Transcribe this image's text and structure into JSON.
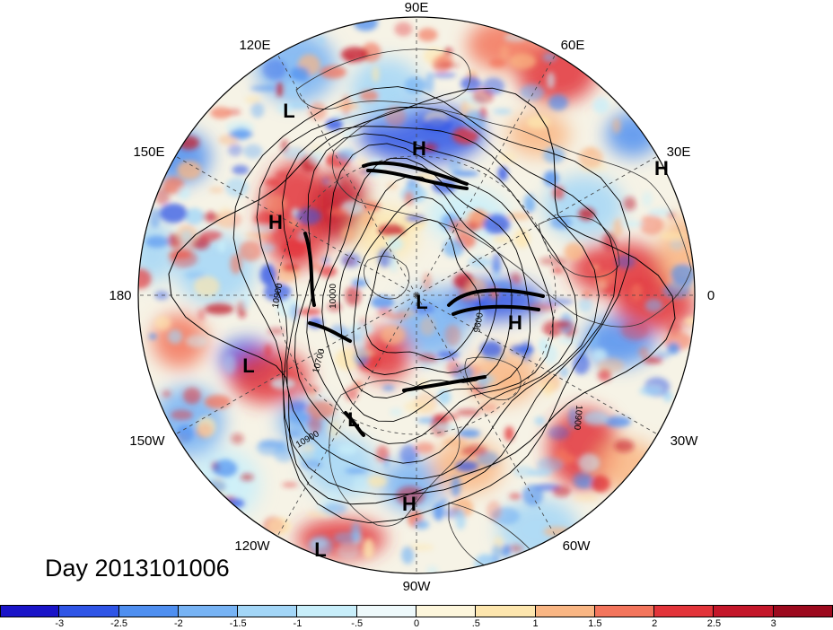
{
  "title": "Day 2013101006",
  "longitude_labels": [
    "90E",
    "60E",
    "30E",
    "0",
    "30W",
    "60W",
    "90W",
    "120W",
    "150W",
    "180",
    "150E",
    "120E"
  ],
  "pressure_labels": [
    "H",
    "H",
    "H",
    "H",
    "H",
    "L",
    "L",
    "L",
    "L",
    "L"
  ],
  "contour_labels": [
    "10900",
    "10000",
    "10700",
    "10900",
    "9600",
    "10900"
  ],
  "colorbar": {
    "ticks": [
      "-3",
      "-2.5",
      "-2",
      "-1.5",
      "-1",
      "-.5",
      "0",
      ".5",
      "1",
      "1.5",
      "2",
      "2.5",
      "3"
    ],
    "colors": [
      "#1a14c8",
      "#2f55e6",
      "#4f8ff0",
      "#77b3f4",
      "#a3d6f7",
      "#c8eefa",
      "#eef9fb",
      "#fdf6dc",
      "#fde6ae",
      "#f9b684",
      "#f3755c",
      "#e2343a",
      "#c4172a",
      "#9c0a1e"
    ]
  }
}
